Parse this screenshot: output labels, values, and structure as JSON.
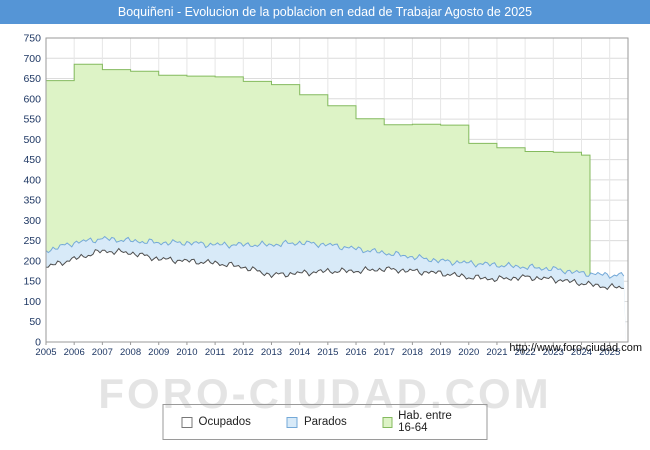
{
  "title_bar": {
    "text": "Boquiñeni - Evolucion de la poblacion en edad de Trabajar Agosto de 2025",
    "bg": "#5595d6"
  },
  "watermark": "FORO-CIUDAD.COM",
  "footer": {
    "url": "http://www.foro-ciudad.com"
  },
  "legend": [
    {
      "label": "Ocupados",
      "fill": "#ffffff",
      "stroke": "#777777"
    },
    {
      "label": "Parados",
      "fill": "#d8eaf8",
      "stroke": "#74a9d8"
    },
    {
      "label": "Hab. entre 16-64",
      "fill": "#ddf3c6",
      "stroke": "#84ba5e"
    }
  ],
  "chart_data": {
    "type": "area",
    "title": "Boquiñeni - Evolucion de la poblacion en edad de Trabajar Agosto de 2025",
    "xlabel": "",
    "ylabel": "",
    "ylim": [
      0,
      750
    ],
    "ytick_step": 50,
    "grid": true,
    "legend_position": "bottom",
    "x_years": [
      2005,
      2006,
      2007,
      2008,
      2009,
      2010,
      2011,
      2012,
      2013,
      2014,
      2015,
      2016,
      2017,
      2018,
      2019,
      2020,
      2021,
      2022,
      2023,
      2024,
      2025
    ],
    "axis_label_color": "#1f3864",
    "series": [
      {
        "name": "Ocupados",
        "style": "monthly-line",
        "stack": "base",
        "fill": "#ffffff",
        "stroke": "#4d4d4d",
        "values": [
          185,
          205,
          225,
          220,
          205,
          200,
          195,
          185,
          165,
          170,
          175,
          175,
          180,
          175,
          170,
          160,
          155,
          160,
          155,
          145,
          135
        ]
      },
      {
        "name": "Parados",
        "style": "monthly-line",
        "stack": "on-ocupados",
        "fill": "#d8eaf8",
        "stroke": "#74a9d8",
        "values": [
          40,
          40,
          30,
          30,
          40,
          45,
          45,
          55,
          75,
          75,
          65,
          55,
          40,
          35,
          30,
          35,
          35,
          25,
          25,
          25,
          30
        ]
      },
      {
        "name": "Hab. entre 16-64",
        "style": "step",
        "stack": "none",
        "fill": "#ddf3c6",
        "stroke": "#84ba5e",
        "values": [
          645,
          685,
          672,
          668,
          658,
          656,
          654,
          643,
          635,
          610,
          583,
          551,
          536,
          537,
          535,
          490,
          479,
          470,
          468,
          461,
          null
        ],
        "ends_at": 2024.3
      }
    ]
  }
}
